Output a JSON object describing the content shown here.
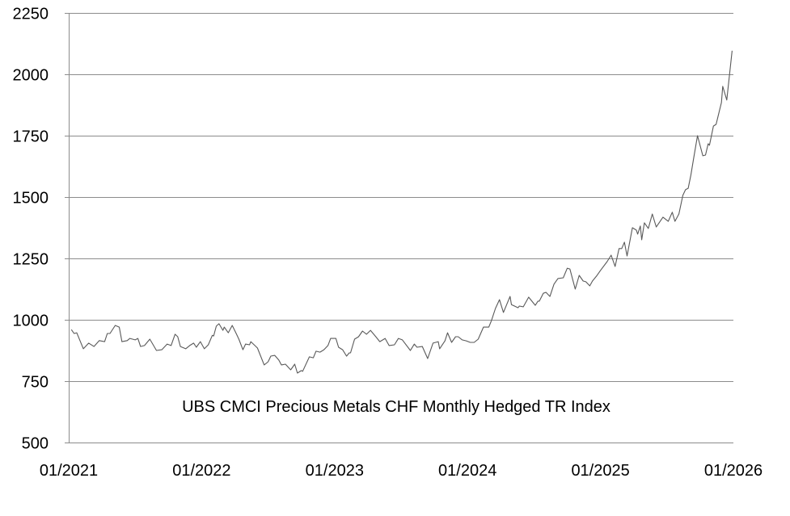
{
  "chart_data": {
    "type": "line",
    "title": "UBS CMCI Precious Metals CHF Monthly Hedged TR Index",
    "xlabel": "",
    "ylabel": "",
    "x_unit": "years since 01/2021",
    "xlim": [
      0,
      5
    ],
    "ylim": [
      500,
      2250
    ],
    "yticks": [
      "500",
      "750",
      "1000",
      "1250",
      "1500",
      "1750",
      "2000",
      "2250"
    ],
    "ytick_values": [
      500,
      750,
      1000,
      1250,
      1500,
      1750,
      2000,
      2250
    ],
    "xticks": [
      "01/2021",
      "01/2022",
      "01/2023",
      "01/2024",
      "01/2025",
      "01/2026"
    ],
    "xtick_values": [
      0,
      1,
      2,
      3,
      4,
      5
    ],
    "grid": true,
    "legend": "none",
    "colors": {
      "line": "#595959",
      "grid": "#8c8c8c",
      "axis": "#8c8c8c"
    },
    "series": [
      {
        "name": "UBS CMCI Precious Metals CHF Monthly Hedged TR Index",
        "x": [
          0.02,
          0.04,
          0.06,
          0.11,
          0.15,
          0.19,
          0.23,
          0.27,
          0.29,
          0.31,
          0.35,
          0.38,
          0.4,
          0.44,
          0.46,
          0.5,
          0.52,
          0.54,
          0.57,
          0.61,
          0.66,
          0.7,
          0.74,
          0.77,
          0.8,
          0.82,
          0.84,
          0.88,
          0.91,
          0.94,
          0.96,
          0.99,
          1.02,
          1.05,
          1.08,
          1.09,
          1.11,
          1.13,
          1.16,
          1.17,
          1.2,
          1.23,
          1.26,
          1.28,
          1.31,
          1.33,
          1.36,
          1.37,
          1.4,
          1.42,
          1.47,
          1.5,
          1.52,
          1.55,
          1.58,
          1.6,
          1.63,
          1.67,
          1.7,
          1.72,
          1.75,
          1.76,
          1.81,
          1.84,
          1.86,
          1.89,
          1.92,
          1.95,
          1.97,
          2.01,
          2.03,
          2.06,
          2.09,
          2.11,
          2.12,
          2.15,
          2.18,
          2.21,
          2.24,
          2.27,
          2.31,
          2.34,
          2.38,
          2.41,
          2.45,
          2.48,
          2.51,
          2.57,
          2.6,
          2.62,
          2.66,
          2.7,
          2.74,
          2.78,
          2.79,
          2.83,
          2.85,
          2.88,
          2.91,
          2.93,
          2.96,
          2.99,
          3.02,
          3.05,
          3.08,
          3.12,
          3.16,
          3.18,
          3.21,
          3.24,
          3.27,
          3.32,
          3.33,
          3.38,
          3.39,
          3.42,
          3.46,
          3.51,
          3.53,
          3.54,
          3.57,
          3.59,
          3.62,
          3.65,
          3.68,
          3.72,
          3.75,
          3.77,
          3.81,
          3.84,
          3.87,
          3.89,
          3.92,
          3.94,
          3.97,
          4.0,
          4.05,
          4.08,
          4.11,
          4.14,
          4.16,
          4.18,
          4.2,
          4.24,
          4.27,
          4.28,
          4.3,
          4.31,
          4.33,
          4.36,
          4.39,
          4.42,
          4.47,
          4.51,
          4.54,
          4.56,
          4.59,
          4.62,
          4.64,
          4.66,
          4.68,
          4.7,
          4.73,
          4.77,
          4.79,
          4.81,
          4.82,
          4.85,
          4.87,
          4.91,
          4.92,
          4.95,
          4.99
        ],
        "y": [
          960,
          944,
          947,
          882,
          905,
          891,
          915,
          911,
          944,
          944,
          977,
          970,
          911,
          915,
          924,
          918,
          924,
          891,
          895,
          921,
          875,
          878,
          901,
          895,
          941,
          931,
          891,
          882,
          895,
          905,
          888,
          911,
          882,
          898,
          937,
          934,
          974,
          984,
          957,
          970,
          947,
          977,
          944,
          921,
          878,
          901,
          898,
          911,
          895,
          885,
          816,
          829,
          852,
          855,
          836,
          816,
          819,
          796,
          819,
          783,
          793,
          790,
          849,
          845,
          872,
          868,
          878,
          895,
          924,
          924,
          888,
          878,
          852,
          865,
          865,
          921,
          931,
          954,
          941,
          957,
          931,
          911,
          924,
          895,
          898,
          924,
          918,
          875,
          901,
          888,
          891,
          842,
          905,
          911,
          882,
          914,
          947,
          908,
          931,
          931,
          918,
          914,
          908,
          908,
          921,
          970,
          970,
          997,
          1046,
          1082,
          1030,
          1095,
          1062,
          1049,
          1056,
          1053,
          1092,
          1059,
          1076,
          1076,
          1108,
          1112,
          1095,
          1145,
          1168,
          1171,
          1210,
          1207,
          1125,
          1181,
          1158,
          1155,
          1138,
          1158,
          1178,
          1201,
          1237,
          1263,
          1217,
          1290,
          1290,
          1316,
          1260,
          1375,
          1365,
          1349,
          1382,
          1326,
          1395,
          1372,
          1431,
          1378,
          1418,
          1401,
          1438,
          1401,
          1431,
          1507,
          1530,
          1536,
          1589,
          1655,
          1750,
          1668,
          1671,
          1717,
          1711,
          1789,
          1796,
          1885,
          1951,
          1895,
          2096
        ]
      }
    ]
  }
}
